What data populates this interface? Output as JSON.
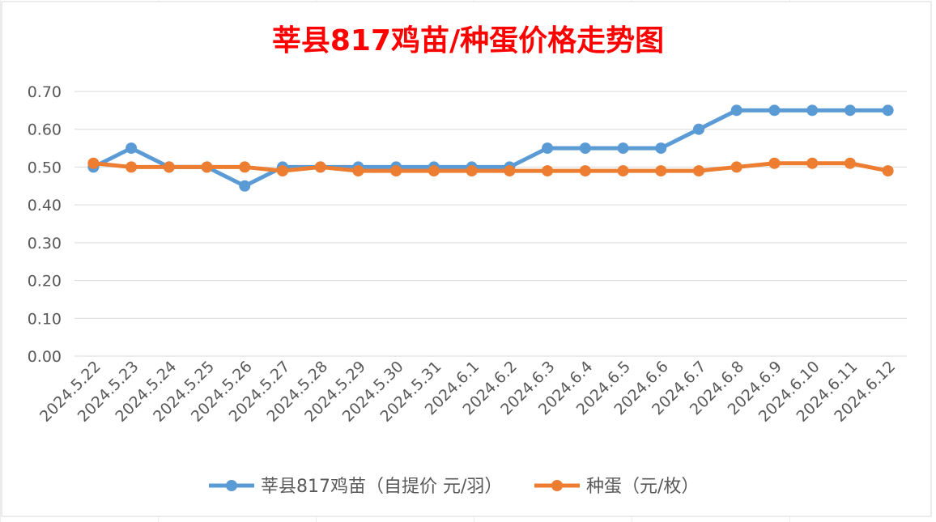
{
  "chart_data": {
    "type": "line",
    "title": "莘县817鸡苗/种蛋价格走势图",
    "xlabel": "",
    "ylabel": "",
    "ylim": [
      0,
      0.7
    ],
    "yticks": [
      "0.00",
      "0.10",
      "0.20",
      "0.30",
      "0.40",
      "0.50",
      "0.60",
      "0.70"
    ],
    "grid": true,
    "legend_position": "bottom",
    "categories": [
      "2024.5.22",
      "2024.5.23",
      "2024.5.24",
      "2024.5.25",
      "2024.5.26",
      "2024.5.27",
      "2024.5.28",
      "2024.5.29",
      "2024.5.30",
      "2024.5.31",
      "2024.6.1",
      "2024.6.2",
      "2024.6.3",
      "2024.6.4",
      "2024.6.5",
      "2024.6.6",
      "2024.6.7",
      "2024.6.8",
      "2024.6.9",
      "2024.6.10",
      "2024.6.11",
      "2024.6.12"
    ],
    "series": [
      {
        "name": "莘县817鸡苗（自提价 元/羽）",
        "color": "#5B9BD5",
        "values": [
          0.5,
          0.55,
          0.5,
          0.5,
          0.45,
          0.5,
          0.5,
          0.5,
          0.5,
          0.5,
          0.5,
          0.5,
          0.55,
          0.55,
          0.55,
          0.55,
          0.6,
          0.65,
          0.65,
          0.65,
          0.65,
          0.65
        ]
      },
      {
        "name": "种蛋（元/枚）",
        "color": "#ED7D31",
        "values": [
          0.51,
          0.5,
          0.5,
          0.5,
          0.5,
          0.49,
          0.5,
          0.49,
          0.49,
          0.49,
          0.49,
          0.49,
          0.49,
          0.49,
          0.49,
          0.49,
          0.49,
          0.5,
          0.51,
          0.51,
          0.51,
          0.49
        ]
      }
    ],
    "title_color": "#FF0000"
  }
}
